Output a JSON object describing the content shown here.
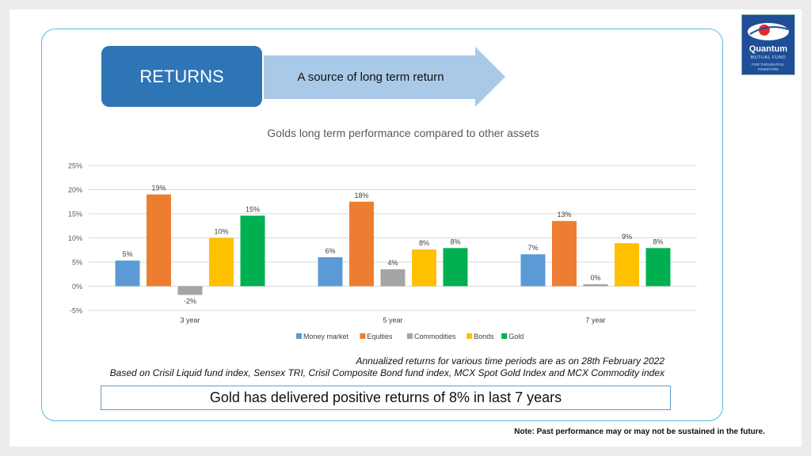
{
  "header": {
    "returns_label": "RETURNS",
    "arrow_text": "A source of long term return"
  },
  "logo": {
    "brand": "Quantum",
    "sub": "MUTUAL FUND",
    "tagline": "FOR THOUGHTFUL INVESTORS"
  },
  "chart_data": {
    "type": "bar",
    "title": "Golds long term performance compared to other assets",
    "categories": [
      "3 year",
      "5 year",
      "7 year"
    ],
    "series": [
      {
        "name": "Money market",
        "color": "#5b9bd5",
        "values": [
          5.3,
          6.0,
          6.6
        ],
        "labels": [
          "5%",
          "6%",
          "7%"
        ]
      },
      {
        "name": "Equities",
        "color": "#ed7d31",
        "values": [
          19.0,
          17.5,
          13.5
        ],
        "labels": [
          "19%",
          "18%",
          "13%"
        ]
      },
      {
        "name": "Commodities",
        "color": "#a5a5a5",
        "values": [
          -1.8,
          3.5,
          0.4
        ],
        "labels": [
          "-2%",
          "4%",
          "0%"
        ]
      },
      {
        "name": "Bonds",
        "color": "#ffc000",
        "values": [
          10.0,
          7.6,
          8.9
        ],
        "labels": [
          "10%",
          "8%",
          "9%"
        ]
      },
      {
        "name": "Gold",
        "color": "#00b050",
        "values": [
          14.6,
          7.9,
          7.9
        ],
        "labels": [
          "15%",
          "8%",
          "8%"
        ]
      }
    ],
    "yticks": [
      "-5%",
      "0%",
      "5%",
      "10%",
      "15%",
      "20%",
      "25%"
    ],
    "ylim": [
      -5,
      25
    ],
    "grid": true,
    "legend": "bottom"
  },
  "notes": {
    "line1": "Annualized returns for various time periods are as on 28th February 2022",
    "line2": "Based on Crisil Liquid fund index, Sensex TRI, Crisil Composite Bond fund index, MCX Spot Gold Index and MCX Commodity index"
  },
  "highlight": "Gold has delivered positive returns of 8% in last 7 years",
  "footnote": "Note: Past performance may or may not be sustained in the future."
}
